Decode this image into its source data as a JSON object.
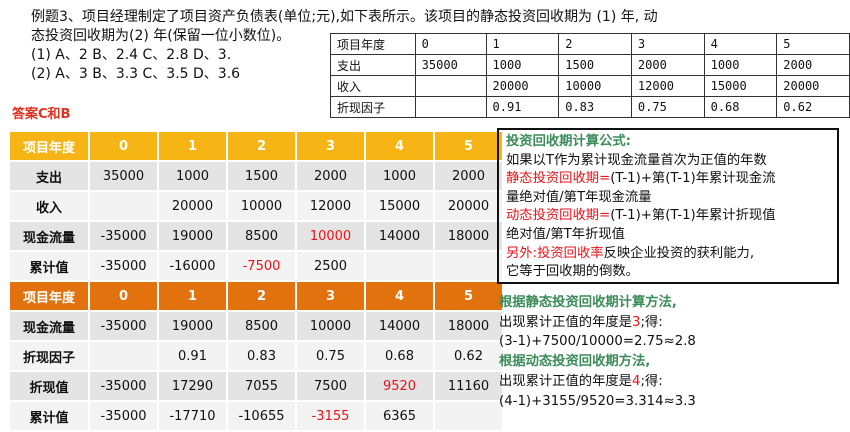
{
  "question": {
    "line1": "例题3、项目经理制定了项目资产负债表(单位;元),如下表所示。该项目的静态投资回收期为 (1) 年, 动",
    "line2": "态投资回收期为(2) 年(保留一位小数位)。",
    "opt1": "(1) A、2  B、2.4  C、2.8  D、3.",
    "opt2": "(2) A、3  B、3.3  C、3.5  D、3.6"
  },
  "answer": "答案C和B",
  "small_table": {
    "rows": [
      [
        "项目年度",
        "0",
        "1",
        "2",
        "3",
        "4",
        "5"
      ],
      [
        "支出",
        "35000",
        "1000",
        "1500",
        "2000",
        "1000",
        "2000"
      ],
      [
        "收入",
        "",
        "20000",
        "10000",
        "12000",
        "15000",
        "20000"
      ],
      [
        "折现因子",
        "",
        "0.91",
        "0.83",
        "0.75",
        "0.68",
        "0.62"
      ]
    ]
  },
  "main_table": {
    "header1": [
      "项目年度",
      "0",
      "1",
      "2",
      "3",
      "4",
      "5"
    ],
    "rows1": [
      {
        "cells": [
          "支出",
          "35000",
          "1000",
          "1500",
          "2000",
          "1000",
          "2000"
        ],
        "red": []
      },
      {
        "cells": [
          "收入",
          "",
          "20000",
          "10000",
          "12000",
          "15000",
          "20000"
        ],
        "red": []
      },
      {
        "cells": [
          "现金流量",
          "-35000",
          "19000",
          "8500",
          "10000",
          "14000",
          "18000"
        ],
        "red": [
          4
        ]
      },
      {
        "cells": [
          "累计值",
          "-35000",
          "-16000",
          "-7500",
          "2500",
          "",
          ""
        ],
        "red": [
          3
        ]
      }
    ],
    "header2": [
      "项目年度",
      "0",
      "1",
      "2",
      "3",
      "4",
      "5"
    ],
    "rows2": [
      {
        "cells": [
          "现金流量",
          "-35000",
          "19000",
          "8500",
          "10000",
          "14000",
          "18000"
        ],
        "red": []
      },
      {
        "cells": [
          "折现因子",
          "",
          "0.91",
          "0.83",
          "0.75",
          "0.68",
          "0.62"
        ],
        "red": []
      },
      {
        "cells": [
          "折现值",
          "-35000",
          "17290",
          "7055",
          "7500",
          "9520",
          "11160"
        ],
        "red": [
          5
        ]
      },
      {
        "cells": [
          "累计值",
          "-35000",
          "-17710",
          "-10655",
          "-3155",
          "6365",
          ""
        ],
        "red": [
          4
        ]
      }
    ]
  },
  "formula_box": {
    "title": "投资回收期计算公式:",
    "line1": "如果以T作为累计现金流量首次为正值的年数",
    "static_label": "静态投资回收期=",
    "static_text1": "(T-1)+第(T-1)年累计现金流",
    "static_text2": "量绝对值/第T年现金流量",
    "dynamic_label": "动态投资回收期=",
    "dynamic_text1": "(T-1)+第(T-1)年累计折现值",
    "dynamic_text2": "绝对值/第T年折现值",
    "other_label": "另外:",
    "roi_label": "投资回收率",
    "roi_text1": "反映企业投资的获利能力,",
    "roi_text2": "它等于回收期的倒数。"
  },
  "steps": {
    "static_title": "根据静态投资回收期计算方法,",
    "static_line_a": "出现累计正值的年度是",
    "static_year": "3",
    "static_line_b": ";得:",
    "static_calc": "(3-1)+7500/10000=2.75≈2.8",
    "dynamic_title": "根据动态投资回收期方法,",
    "dynamic_line_a": "出现累计正值的年度是",
    "dynamic_year": "4",
    "dynamic_line_b": ";得:",
    "dynamic_calc": "(4-1)+3155/9520=3.314≈3.3"
  },
  "colors": {
    "header_yellow": "#f6b514",
    "header_orange": "#e2720d",
    "highlight_red": "#e8141b",
    "title_green": "#3c8c5a"
  }
}
